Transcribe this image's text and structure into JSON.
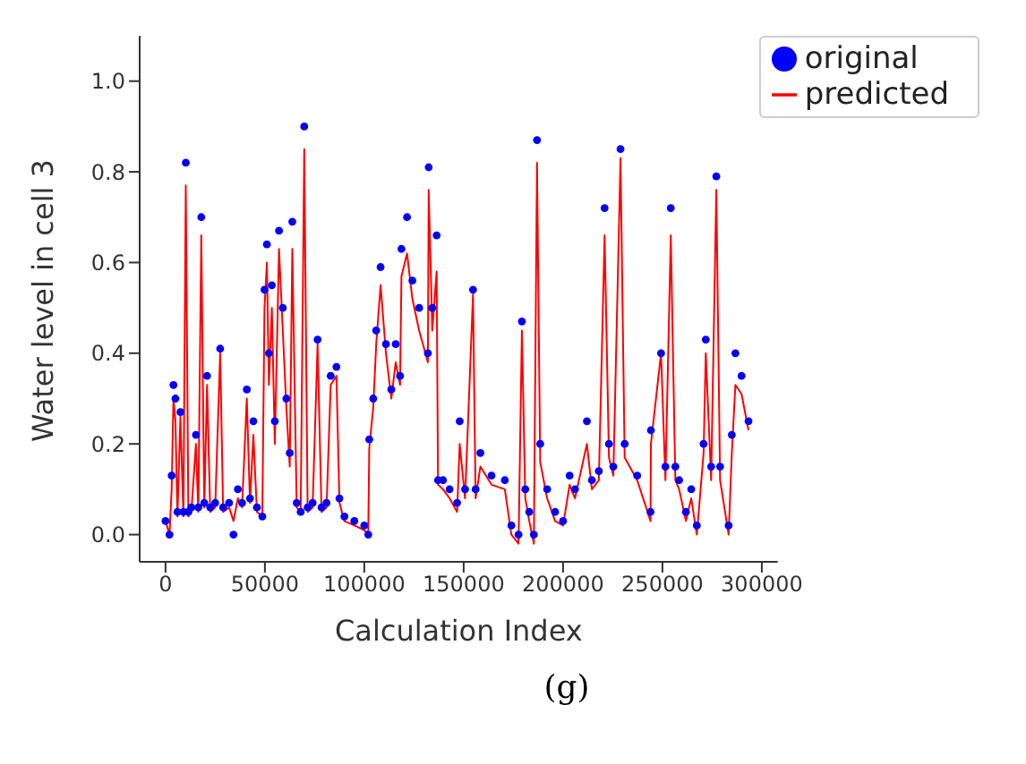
{
  "chart_data": {
    "type": "line",
    "xlabel": "Calculation Index",
    "ylabel": "Water level in cell 3",
    "annotations": [
      "(g)"
    ],
    "x": [
      0,
      2000,
      3100,
      4000,
      5000,
      6000,
      7500,
      9000,
      10200,
      11500,
      13000,
      15300,
      16500,
      18000,
      19500,
      20900,
      22500,
      25000,
      27500,
      29000,
      32000,
      34200,
      36400,
      38500,
      40900,
      42500,
      44200,
      46000,
      48700,
      49800,
      51000,
      52000,
      53500,
      55000,
      57100,
      59000,
      60800,
      62500,
      63800,
      66000,
      68000,
      69800,
      71500,
      74000,
      76500,
      78500,
      81000,
      83100,
      86000,
      87500,
      90000,
      95000,
      100000,
      102000,
      102500,
      104500,
      106000,
      108200,
      110900,
      113600,
      115800,
      118000,
      118700,
      121500,
      124200,
      127600,
      132000,
      132400,
      134200,
      136400,
      137100,
      139600,
      142900,
      146700,
      148000,
      150700,
      154700,
      156000,
      158400,
      164000,
      170700,
      174000,
      177600,
      179300,
      181000,
      183000,
      185300,
      186900,
      188500,
      192000,
      196000,
      200000,
      203300,
      206000,
      212000,
      214500,
      218000,
      220900,
      223100,
      225300,
      228900,
      231000,
      237300,
      244000,
      244200,
      249300,
      251500,
      254200,
      256500,
      258400,
      261800,
      264500,
      267300,
      270700,
      271800,
      274500,
      277100,
      279000,
      283300,
      284900,
      286700,
      289800,
      293300
    ],
    "series": [
      {
        "name": "predicted",
        "color": "#ff0000",
        "marker": "none",
        "values": [
          0.03,
          0.0,
          0.1,
          0.3,
          0.25,
          0.04,
          0.26,
          0.04,
          0.77,
          0.04,
          0.05,
          0.2,
          0.05,
          0.66,
          0.06,
          0.33,
          0.05,
          0.06,
          0.4,
          0.05,
          0.06,
          0.03,
          0.08,
          0.06,
          0.3,
          0.07,
          0.22,
          0.05,
          0.04,
          0.5,
          0.6,
          0.33,
          0.5,
          0.2,
          0.63,
          0.45,
          0.28,
          0.15,
          0.63,
          0.06,
          0.05,
          0.85,
          0.05,
          0.06,
          0.42,
          0.05,
          0.06,
          0.33,
          0.35,
          0.07,
          0.03,
          0.02,
          0.01,
          0.0,
          0.19,
          0.28,
          0.42,
          0.55,
          0.4,
          0.3,
          0.38,
          0.33,
          0.57,
          0.62,
          0.52,
          0.45,
          0.38,
          0.76,
          0.45,
          0.58,
          0.11,
          0.1,
          0.08,
          0.05,
          0.2,
          0.08,
          0.53,
          0.08,
          0.15,
          0.11,
          0.1,
          0.0,
          -0.02,
          0.45,
          0.08,
          0.03,
          -0.02,
          0.82,
          0.16,
          0.08,
          0.03,
          0.02,
          0.11,
          0.08,
          0.2,
          0.1,
          0.12,
          0.66,
          0.17,
          0.13,
          0.83,
          0.17,
          0.12,
          0.03,
          0.2,
          0.4,
          0.12,
          0.66,
          0.12,
          0.1,
          0.03,
          0.08,
          0.0,
          0.18,
          0.4,
          0.12,
          0.76,
          0.12,
          0.0,
          0.18,
          0.33,
          0.31,
          0.23
        ]
      },
      {
        "name": "original",
        "type": "scatter",
        "color": "#0000ff",
        "marker": "circle",
        "values": [
          0.03,
          0.0,
          0.13,
          0.33,
          0.3,
          0.05,
          0.27,
          0.05,
          0.82,
          0.05,
          0.06,
          0.22,
          0.06,
          0.7,
          0.07,
          0.35,
          0.06,
          0.07,
          0.41,
          0.06,
          0.07,
          0.0,
          0.1,
          0.07,
          0.32,
          0.08,
          0.25,
          0.06,
          0.04,
          0.54,
          0.64,
          0.4,
          0.55,
          0.25,
          0.67,
          0.5,
          0.3,
          0.18,
          0.69,
          0.07,
          0.05,
          0.9,
          0.06,
          0.07,
          0.43,
          0.06,
          0.07,
          0.35,
          0.37,
          0.08,
          0.04,
          0.03,
          0.02,
          0.0,
          0.21,
          0.3,
          0.45,
          0.59,
          0.42,
          0.32,
          0.42,
          0.35,
          0.63,
          0.7,
          0.56,
          0.5,
          0.4,
          0.81,
          0.5,
          0.66,
          0.12,
          0.12,
          0.1,
          0.07,
          0.25,
          0.1,
          0.54,
          0.1,
          0.18,
          0.13,
          0.12,
          0.02,
          0.0,
          0.47,
          0.1,
          0.05,
          0.0,
          0.87,
          0.2,
          0.1,
          0.05,
          0.03,
          0.13,
          0.1,
          0.25,
          0.12,
          0.14,
          0.72,
          0.2,
          0.15,
          0.85,
          0.2,
          0.13,
          0.05,
          0.23,
          0.4,
          0.15,
          0.72,
          0.15,
          0.12,
          0.05,
          0.1,
          0.02,
          0.2,
          0.43,
          0.15,
          0.79,
          0.15,
          0.02,
          0.22,
          0.4,
          0.35,
          0.25
        ]
      }
    ],
    "xlim": [
      -13000,
      308000
    ],
    "xticks": [
      0,
      50000,
      100000,
      150000,
      200000,
      250000,
      300000
    ],
    "ylim": [
      -0.06,
      1.1
    ],
    "yticks": [
      {
        "value": 0,
        "label": "0.0"
      },
      {
        "value": 0.2,
        "label": "0.2"
      },
      {
        "value": 0.4,
        "label": "0.4"
      },
      {
        "value": 0.6,
        "label": "0.6"
      },
      {
        "value": 0.8,
        "label": "0.8"
      },
      {
        "value": 1,
        "label": "1.0"
      }
    ],
    "grid": false,
    "legend": "top right"
  }
}
